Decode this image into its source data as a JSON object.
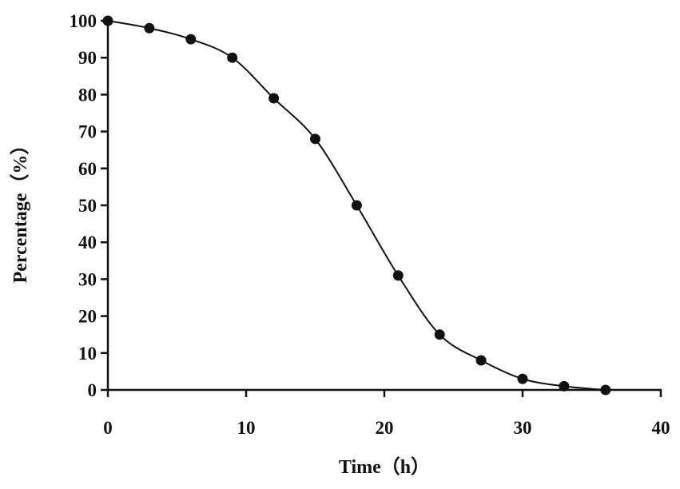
{
  "chart_data": {
    "type": "line",
    "title": "",
    "xlabel": "Time（h）",
    "ylabel": "Percentage（%）",
    "xlim": [
      0,
      40
    ],
    "ylim": [
      0,
      100
    ],
    "x_ticks": [
      0,
      10,
      20,
      30,
      40
    ],
    "y_ticks": [
      0,
      10,
      20,
      30,
      40,
      50,
      60,
      70,
      80,
      90,
      100
    ],
    "grid": false,
    "legend": "none",
    "line_color": "#111111",
    "marker": "filled-circle",
    "series": [
      {
        "x": [
          0,
          3,
          6,
          9,
          12,
          15,
          18,
          21,
          24,
          27,
          30,
          33,
          36
        ],
        "y": [
          100,
          98,
          95,
          90,
          79,
          68,
          50,
          31,
          15,
          8,
          3,
          1,
          0
        ]
      }
    ]
  }
}
